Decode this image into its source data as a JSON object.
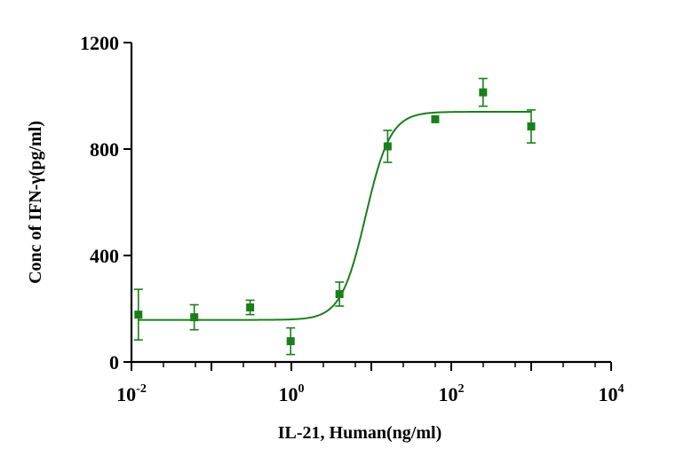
{
  "chart_data": {
    "type": "scatter",
    "title": "",
    "xlabel": "IL-21, Human(ng/ml)",
    "ylabel": "Conc of IFN-γ(pg/ml)",
    "x_scale": "log10",
    "xlim": [
      0.01,
      10000
    ],
    "ylim": [
      0,
      1200
    ],
    "y_ticks": [
      0,
      400,
      800,
      1200
    ],
    "y_tick_labels": [
      "0",
      "400",
      "800",
      "1200"
    ],
    "x_ticks": [
      0.01,
      1,
      100,
      10000
    ],
    "x_tick_labels": [
      {
        "base": "10",
        "exp": "-2"
      },
      {
        "base": "10",
        "exp": "0"
      },
      {
        "base": "10",
        "exp": "2"
      },
      {
        "base": "10",
        "exp": "4"
      }
    ],
    "series": [
      {
        "color": "#1a7f1a",
        "points": [
          {
            "x": 0.0122,
            "y": 178,
            "err": 95
          },
          {
            "x": 0.061,
            "y": 168,
            "err": 47
          },
          {
            "x": 0.305,
            "y": 205,
            "err": 27
          },
          {
            "x": 0.98,
            "y": 78,
            "err": 50
          },
          {
            "x": 4.0,
            "y": 255,
            "err": 45
          },
          {
            "x": 16.0,
            "y": 810,
            "err": 60
          },
          {
            "x": 63.0,
            "y": 912,
            "err": 0
          },
          {
            "x": 250.0,
            "y": 1013,
            "err": 52
          },
          {
            "x": 1000.0,
            "y": 885,
            "err": 62
          }
        ],
        "fit": {
          "bottom": 158,
          "top": 940,
          "ec50": 8.5,
          "hill": 2.8
        }
      }
    ],
    "grid": false,
    "legend": "none"
  }
}
